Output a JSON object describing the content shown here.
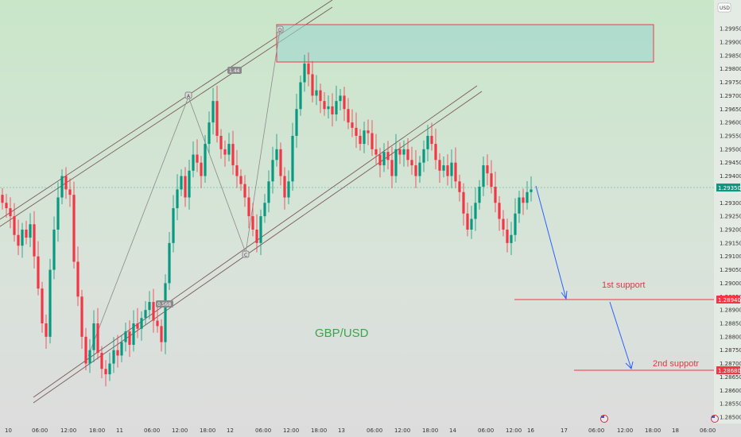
{
  "chart_data": {
    "type": "candlestick",
    "title": "GBP/USD",
    "currency": "USD",
    "price_ticks": [
      "1.29950",
      "1.29900",
      "1.29850",
      "1.29800",
      "1.29750",
      "1.29700",
      "1.29650",
      "1.29600",
      "1.29550",
      "1.29500",
      "1.29450",
      "1.29400",
      "1.29350",
      "1.29300",
      "1.29250",
      "1.29200",
      "1.29150",
      "1.29100",
      "1.29050",
      "1.29000",
      "1.28950",
      "1.28900",
      "1.28850",
      "1.28800",
      "1.28750",
      "1.28700",
      "1.28650",
      "1.28600",
      "1.28550",
      "1.28500"
    ],
    "ylim": [
      1.285,
      1.2998
    ],
    "x_ticks": [
      "10",
      "06:00",
      "12:00",
      "18:00",
      "11",
      "06:00",
      "12:00",
      "18:00",
      "12",
      "06:00",
      "12:00",
      "18:00",
      "13",
      "06:00",
      "12:00",
      "18:00",
      "14",
      "06:00",
      "12:00",
      "16",
      "17",
      "06:00",
      "12:00",
      "18:00",
      "18",
      "06:00"
    ],
    "current_price": "1.29350",
    "support_levels": [
      {
        "label": "1st support",
        "price": "1.28940",
        "value": 1.2894
      },
      {
        "label": "2nd suppotr",
        "price": "1.28680",
        "value": 1.2868
      }
    ],
    "resistance_zone": {
      "low": 1.298,
      "high": 1.2994
    },
    "pattern_labels": [
      "A",
      "B",
      "C",
      "D"
    ],
    "fib_labels": [
      "1.44",
      "0.568"
    ],
    "colors": {
      "up": "#089981",
      "down": "#f23645",
      "support": "#f23645",
      "current": "#089981",
      "arrow": "#2962ff",
      "zone": "#9fd6cf",
      "zone_border": "#f23645"
    },
    "close_path": [
      1.293,
      1.2928,
      1.2925,
      1.2918,
      1.2914,
      1.292,
      1.2917,
      1.2922,
      1.291,
      1.2898,
      1.2885,
      1.288,
      1.2905,
      1.292,
      1.2932,
      1.294,
      1.2935,
      1.2933,
      1.2908,
      1.2895,
      1.288,
      1.287,
      1.2875,
      1.2885,
      1.2874,
      1.2868,
      1.2866,
      1.287,
      1.2875,
      1.2873,
      1.2878,
      1.2882,
      1.2877,
      1.2885,
      1.2883,
      1.2887,
      1.289,
      1.2893,
      1.2886,
      1.2884,
      1.2878,
      1.29,
      1.2915,
      1.2928,
      1.2935,
      1.294,
      1.2932,
      1.2942,
      1.2948,
      1.2945,
      1.294,
      1.2952,
      1.296,
      1.2968,
      1.2955,
      1.295,
      1.2948,
      1.2952,
      1.2944,
      1.294,
      1.2937,
      1.2932,
      1.2925,
      1.292,
      1.2915,
      1.2925,
      1.293,
      1.2938,
      1.2946,
      1.295,
      1.294,
      1.2932,
      1.2938,
      1.2955,
      1.2965,
      1.2975,
      1.2982,
      1.2978,
      1.297,
      1.2972,
      1.2968,
      1.2965,
      1.2966,
      1.2963,
      1.2968,
      1.297,
      1.2965,
      1.296,
      1.2958,
      1.2955,
      1.2952,
      1.2957,
      1.2956,
      1.295,
      1.2948,
      1.2944,
      1.2949,
      1.2946,
      1.294,
      1.295,
      1.2948,
      1.295,
      1.2946,
      1.2944,
      1.294,
      1.2945,
      1.295,
      1.2955,
      1.2952,
      1.2946,
      1.2942,
      1.2944,
      1.294,
      1.2945,
      1.2938,
      1.2934,
      1.2926,
      1.292,
      1.2924,
      1.293,
      1.2936,
      1.2944,
      1.2941,
      1.2936,
      1.293,
      1.2924,
      1.292,
      1.2915,
      1.2918,
      1.2926,
      1.2932,
      1.293,
      1.2934,
      1.2935
    ]
  }
}
